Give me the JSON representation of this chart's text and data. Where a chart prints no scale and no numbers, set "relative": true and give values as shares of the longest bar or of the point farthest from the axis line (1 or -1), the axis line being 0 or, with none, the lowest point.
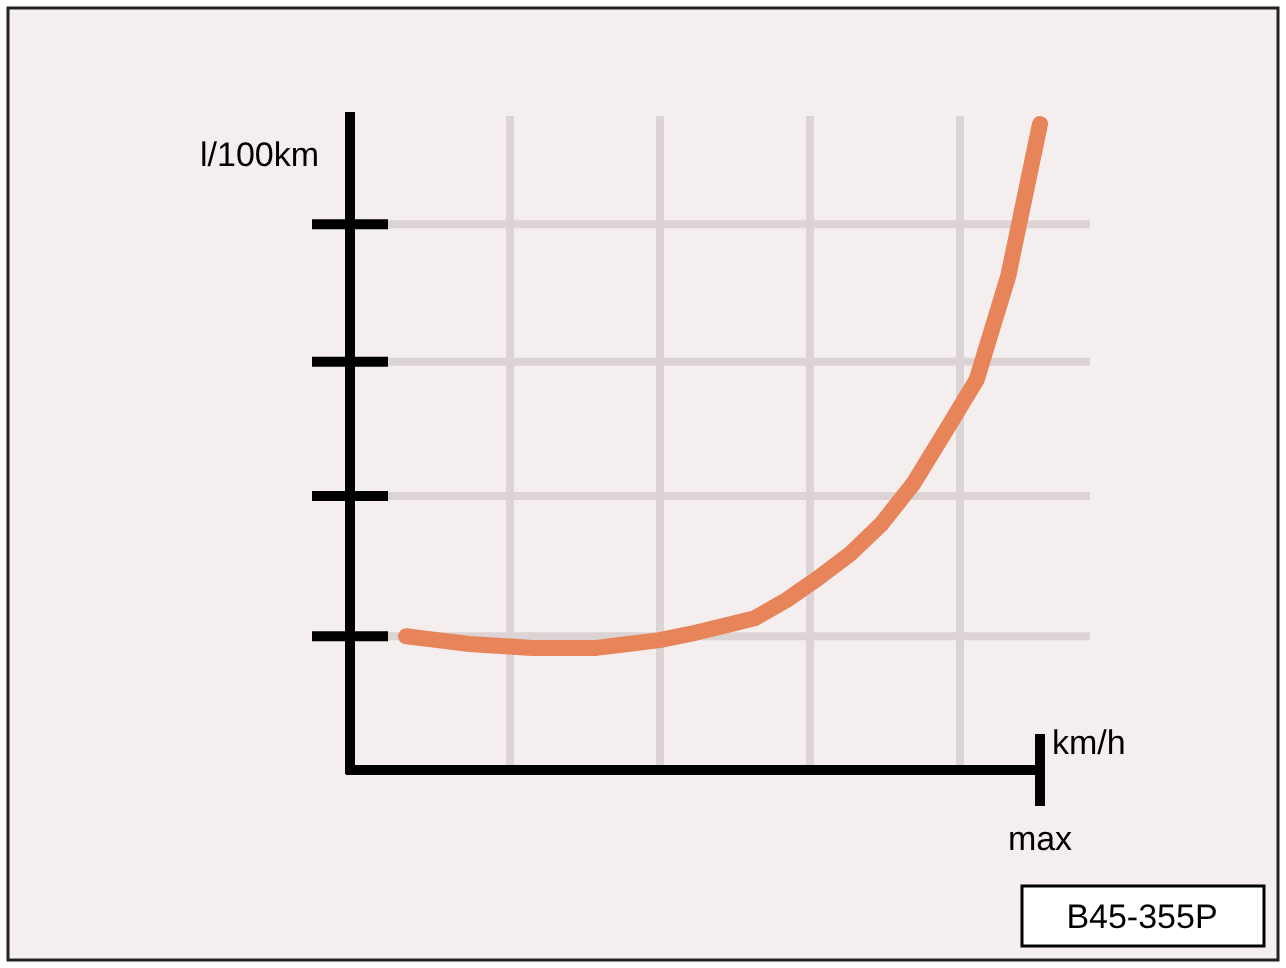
{
  "chart_data": {
    "type": "line",
    "relative": true,
    "ylabel": "l/100km",
    "xlabel": "km/h",
    "categories": [
      null,
      null,
      null,
      null,
      null,
      null,
      null,
      null,
      null,
      null,
      null,
      null,
      null,
      null,
      null,
      null,
      null,
      null,
      null,
      null,
      null
    ],
    "series": [
      {
        "color": "#e8845a",
        "values": [
          0.207,
          0.201,
          0.195,
          0.192,
          0.189,
          0.189,
          0.189,
          0.195,
          0.201,
          0.211,
          0.223,
          0.235,
          0.263,
          0.297,
          0.334,
          0.381,
          0.443,
          0.523,
          0.604,
          0.765,
          1
        ]
      }
    ],
    "grid": true,
    "marker": "none",
    "line_style": "solid",
    "annotations": [
      "max",
      "B45-355P"
    ]
  }
}
